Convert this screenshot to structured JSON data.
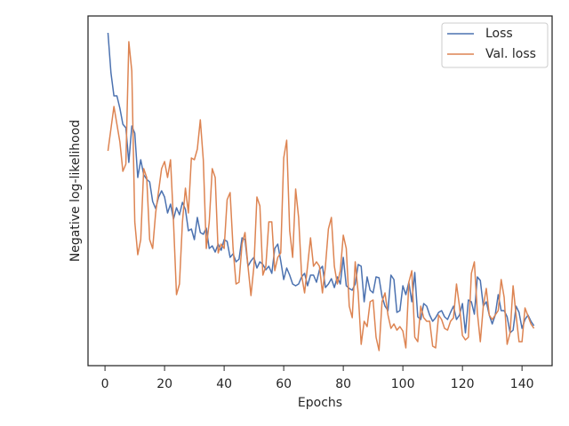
{
  "chart_data": {
    "type": "line",
    "xlabel": "Epochs",
    "ylabel": "Negative log-likelihood",
    "x": [
      1,
      2,
      3,
      4,
      5,
      6,
      7,
      8,
      9,
      10,
      11,
      12,
      13,
      14,
      15,
      16,
      17,
      18,
      19,
      20,
      21,
      22,
      23,
      24,
      25,
      26,
      27,
      28,
      29,
      30,
      31,
      32,
      33,
      34,
      35,
      36,
      37,
      38,
      39,
      40,
      41,
      42,
      43,
      44,
      45,
      46,
      47,
      48,
      49,
      50,
      51,
      52,
      53,
      54,
      55,
      56,
      57,
      58,
      59,
      60,
      61,
      62,
      63,
      64,
      65,
      66,
      67,
      68,
      69,
      70,
      71,
      72,
      73,
      74,
      75,
      76,
      77,
      78,
      79,
      80,
      81,
      82,
      83,
      84,
      85,
      86,
      87,
      88,
      89,
      90,
      91,
      92,
      93,
      94,
      95,
      96,
      97,
      98,
      99,
      100,
      101,
      102,
      103,
      104,
      105,
      106,
      107,
      108,
      109,
      110,
      111,
      112,
      113,
      114,
      115,
      116,
      117,
      118,
      119,
      120,
      121,
      122,
      123,
      124,
      125,
      126,
      127,
      128,
      129,
      130,
      131,
      132,
      133,
      134,
      135,
      136,
      137,
      138,
      139,
      140,
      141,
      142,
      143,
      144
    ],
    "series": [
      {
        "name": "Loss",
        "color": "#4c72b0",
        "values": [
          375,
          330,
          304,
          304,
          290,
          272,
          268,
          229,
          270,
          262,
          212,
          232,
          215,
          210,
          207,
          185,
          177,
          190,
          197,
          190,
          172,
          182,
          165,
          178,
          170,
          184,
          176,
          152,
          154,
          142,
          167,
          150,
          148,
          155,
          132,
          135,
          128,
          137,
          130,
          142,
          140,
          122,
          126,
          117,
          120,
          144,
          142,
          112,
          118,
          122,
          110,
          117,
          114,
          108,
          112,
          104,
          132,
          137,
          118,
          97,
          110,
          102,
          92,
          90,
          92,
          100,
          104,
          90,
          102,
          102,
          94,
          108,
          112,
          88,
          92,
          98,
          88,
          100,
          92,
          122,
          90,
          87,
          85,
          92,
          114,
          112,
          72,
          100,
          85,
          82,
          100,
          99,
          78,
          67,
          62,
          102,
          97,
          60,
          62,
          90,
          80,
          94,
          72,
          105,
          55,
          52,
          70,
          67,
          57,
          50,
          54,
          60,
          62,
          55,
          52,
          60,
          67,
          52,
          57,
          70,
          37,
          74,
          72,
          58,
          100,
          96,
          67,
          72,
          57,
          47,
          57,
          80,
          62,
          62,
          55,
          37,
          40,
          67,
          60,
          42,
          52,
          57,
          50,
          45
        ]
      },
      {
        "name": "Val. loss",
        "color": "#dd8452",
        "values": [
          242,
          267,
          292,
          272,
          252,
          219,
          227,
          365,
          332,
          162,
          125,
          142,
          222,
          212,
          142,
          132,
          172,
          197,
          222,
          230,
          212,
          232,
          162,
          80,
          92,
          162,
          200,
          172,
          234,
          232,
          244,
          277,
          232,
          132,
          162,
          222,
          212,
          127,
          137,
          132,
          187,
          195,
          132,
          92,
          94,
          137,
          150,
          112,
          79,
          112,
          190,
          180,
          102,
          112,
          162,
          162,
          107,
          122,
          127,
          234,
          254,
          152,
          122,
          199,
          167,
          102,
          82,
          112,
          144,
          112,
          117,
          112,
          82,
          112,
          154,
          167,
          112,
          92,
          107,
          147,
          132,
          67,
          54,
          117,
          82,
          24,
          50,
          44,
          72,
          74,
          32,
          17,
          72,
          82,
          57,
          42,
          47,
          40,
          44,
          39,
          20,
          94,
          107,
          32,
          27,
          67,
          54,
          50,
          50,
          22,
          20,
          57,
          52,
          42,
          40,
          50,
          54,
          92,
          67,
          34,
          29,
          32,
          104,
          117,
          60,
          27,
          67,
          87,
          57,
          52,
          57,
          62,
          97,
          77,
          24,
          37,
          90,
          57,
          27,
          27,
          65,
          56,
          47,
          42
        ]
      }
    ],
    "xlim": [
      -5.7,
      150.1
    ],
    "xticks": [
      0,
      20,
      40,
      60,
      80,
      100,
      120,
      140
    ],
    "ylim": [
      0,
      394
    ],
    "legend": "upper right"
  }
}
